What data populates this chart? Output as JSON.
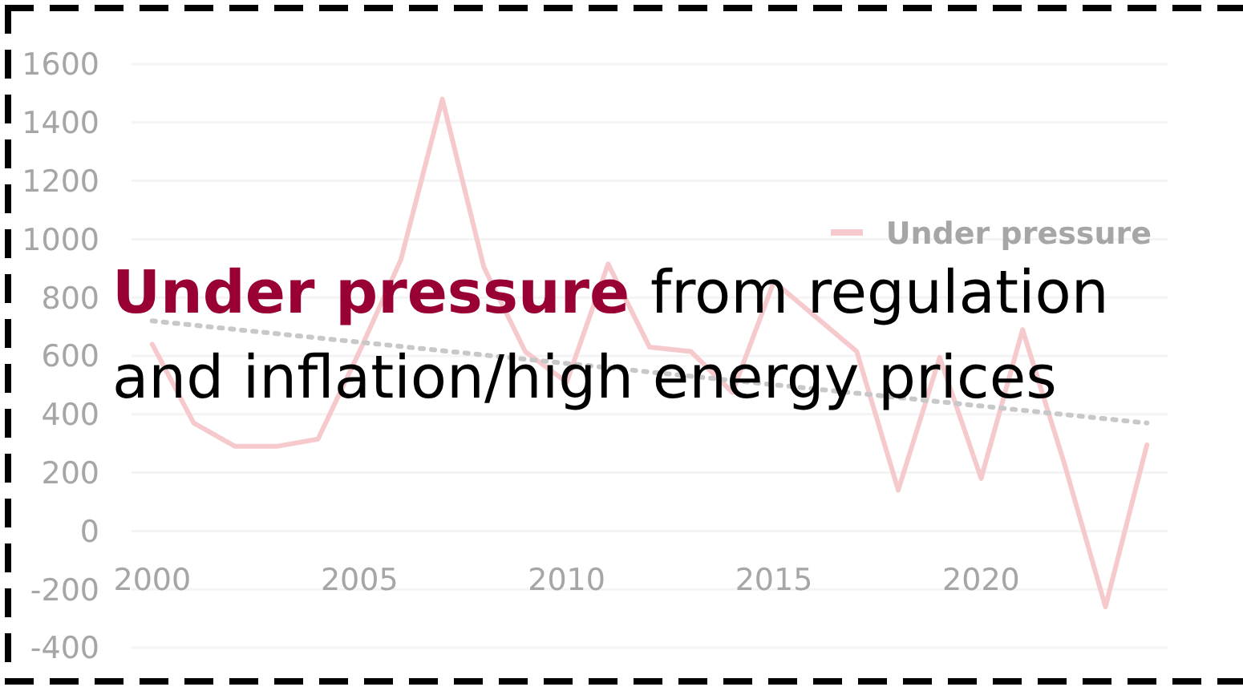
{
  "chart_data": {
    "type": "line",
    "title": "Under pressure",
    "subtitle": "from regulation and inflation/high energy prices",
    "x": [
      2000,
      2001,
      2002,
      2003,
      2004,
      2005,
      2006,
      2007,
      2008,
      2009,
      2010,
      2011,
      2012,
      2013,
      2014,
      2015,
      2016,
      2017,
      2018,
      2019,
      2020,
      2021,
      2022,
      2023,
      2024
    ],
    "series": [
      {
        "name": "Under pressure",
        "color": "#f6c9cd",
        "values": [
          640,
          370,
          290,
          290,
          315,
          615,
          930,
          1480,
          905,
          615,
          510,
          915,
          630,
          615,
          475,
          855,
          735,
          615,
          140,
          595,
          180,
          690,
          235,
          -260,
          295
        ]
      },
      {
        "type": "line",
        "color": "#c8c8c8",
        "line_style": "dotted",
        "x": [
          2000,
          2024
        ],
        "values": [
          720,
          370
        ]
      }
    ],
    "xlim": [
      1999.5,
      2024.5
    ],
    "xticks": [
      2000,
      2005,
      2010,
      2015,
      2020
    ],
    "ylim": [
      -400,
      1600
    ],
    "yticks": [
      -400,
      -200,
      0,
      200,
      400,
      600,
      800,
      1000,
      1200,
      1400,
      1600
    ],
    "grid": "y",
    "legend": "top right",
    "line_style": "solid",
    "marker": "none"
  }
}
